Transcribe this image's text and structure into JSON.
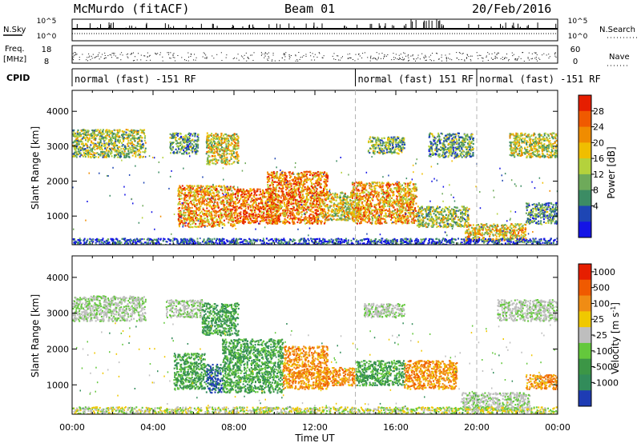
{
  "header": {
    "station": "McMurdo (fitACF)",
    "beam": "Beam 01",
    "date": "20/Feb/2016"
  },
  "chart_data": [
    {
      "type": "line",
      "panel": "noise-and-search",
      "left_label": "N.Sky",
      "right_label": "N.Search",
      "left_ticks": [
        "10^5",
        "10^0"
      ],
      "right_ticks": [
        "10^5",
        "10^0"
      ],
      "series": [
        {
          "name": "N.Sky",
          "style": "solid"
        },
        {
          "name": "N.Search",
          "style": "dotted"
        }
      ]
    },
    {
      "type": "scatter",
      "panel": "frequency-and-nave",
      "left_label_top": "Freq.",
      "left_label_bottom": "[MHz]",
      "right_label": "Nave",
      "left_ticks": [
        18,
        8
      ],
      "right_ticks": [
        60,
        0
      ],
      "ylim_left": [
        8,
        18
      ],
      "ylim_right": [
        0,
        60
      ]
    },
    {
      "type": "table",
      "panel": "cpid",
      "label": "CPID",
      "segments": [
        {
          "start_hour": 0,
          "end_hour": 14,
          "text": "normal (fast) -151 RF"
        },
        {
          "start_hour": 14,
          "end_hour": 20,
          "text": "normal (fast) 151 RF"
        },
        {
          "start_hour": 20,
          "end_hour": 24,
          "text": "normal (fast) -151 RF"
        }
      ]
    },
    {
      "type": "heatmap",
      "panel": "power",
      "ylabel": "Slant Range [km]",
      "yticks": [
        1000,
        2000,
        3000,
        4000
      ],
      "ylim": [
        180,
        4600
      ],
      "xlim_hours": [
        0,
        24
      ],
      "colorbar_label": "Power [dB]",
      "colorbar_ticks": [
        "28",
        "24",
        "20",
        "16",
        "12",
        "8",
        "4"
      ],
      "colors": [
        "#1414e6",
        "#1e46b4",
        "#3c8c64",
        "#6eaa5a",
        "#b4d23c",
        "#f0be00",
        "#f08c00",
        "#f05a00",
        "#e61e00"
      ],
      "regions": [
        {
          "t0": 0.0,
          "t1": 3.6,
          "r0": 2700,
          "r1": 3500,
          "level": 0.45
        },
        {
          "t0": 4.8,
          "t1": 6.2,
          "r0": 2800,
          "r1": 3400,
          "level": 0.35
        },
        {
          "t0": 6.6,
          "t1": 8.2,
          "r0": 2500,
          "r1": 3400,
          "level": 0.55
        },
        {
          "t0": 14.6,
          "t1": 16.4,
          "r0": 2800,
          "r1": 3300,
          "level": 0.4
        },
        {
          "t0": 17.6,
          "t1": 19.8,
          "r0": 2700,
          "r1": 3400,
          "level": 0.35
        },
        {
          "t0": 21.6,
          "t1": 24.0,
          "r0": 2700,
          "r1": 3400,
          "level": 0.5
        },
        {
          "t0": 5.2,
          "t1": 8.0,
          "r0": 700,
          "r1": 1900,
          "level": 0.7
        },
        {
          "t0": 8.0,
          "t1": 10.2,
          "r0": 800,
          "r1": 1800,
          "level": 0.8
        },
        {
          "t0": 9.6,
          "t1": 12.6,
          "r0": 800,
          "r1": 2300,
          "level": 0.75
        },
        {
          "t0": 12.6,
          "t1": 14.2,
          "r0": 900,
          "r1": 1700,
          "level": 0.55
        },
        {
          "t0": 13.8,
          "t1": 17.0,
          "r0": 800,
          "r1": 2000,
          "level": 0.7
        },
        {
          "t0": 17.0,
          "t1": 19.6,
          "r0": 700,
          "r1": 1300,
          "level": 0.45
        },
        {
          "t0": 19.4,
          "t1": 22.4,
          "r0": 300,
          "r1": 800,
          "level": 0.6
        },
        {
          "t0": 22.4,
          "t1": 24.0,
          "r0": 800,
          "r1": 1400,
          "level": 0.3
        },
        {
          "t0": 0.0,
          "t1": 24.0,
          "r0": 180,
          "r1": 380,
          "level": 0.15
        }
      ]
    },
    {
      "type": "heatmap",
      "panel": "velocity",
      "ylabel": "Slant Range [km]",
      "xlabel": "Time UT",
      "yticks": [
        1000,
        2000,
        3000,
        4000
      ],
      "ylim": [
        180,
        4600
      ],
      "xlim_hours": [
        0,
        24
      ],
      "xticks": [
        "00:00",
        "04:00",
        "08:00",
        "12:00",
        "16:00",
        "20:00",
        "00:00"
      ],
      "colorbar_label": "Velocity [m s^-1]",
      "colorbar_ticks": [
        "1000",
        "500",
        "100",
        "25",
        "-25",
        "-100",
        "-500",
        "-1000"
      ],
      "colors": [
        "#1e3cb4",
        "#328c5a",
        "#3c9646",
        "#64c83c",
        "#bebebe",
        "#f0c800",
        "#f08c14",
        "#f05a00",
        "#e61e00"
      ],
      "regions": [
        {
          "t0": 0.0,
          "t1": 3.6,
          "r0": 2800,
          "r1": 3500,
          "kind": "gray"
        },
        {
          "t0": 4.6,
          "t1": 6.4,
          "r0": 2900,
          "r1": 3400,
          "kind": "gray"
        },
        {
          "t0": 6.4,
          "t1": 8.2,
          "r0": 2400,
          "r1": 3300,
          "kind": "green"
        },
        {
          "t0": 14.4,
          "t1": 16.4,
          "r0": 2900,
          "r1": 3300,
          "kind": "gray"
        },
        {
          "t0": 21.0,
          "t1": 24.0,
          "r0": 2800,
          "r1": 3400,
          "kind": "gray"
        },
        {
          "t0": 5.0,
          "t1": 6.6,
          "r0": 900,
          "r1": 1900,
          "kind": "green"
        },
        {
          "t0": 6.6,
          "t1": 7.4,
          "r0": 800,
          "r1": 1600,
          "kind": "blue"
        },
        {
          "t0": 7.4,
          "t1": 10.4,
          "r0": 800,
          "r1": 2300,
          "kind": "green"
        },
        {
          "t0": 10.4,
          "t1": 12.6,
          "r0": 900,
          "r1": 2100,
          "kind": "orange"
        },
        {
          "t0": 12.4,
          "t1": 14.0,
          "r0": 1000,
          "r1": 1500,
          "kind": "orange"
        },
        {
          "t0": 14.0,
          "t1": 16.4,
          "r0": 1000,
          "r1": 1700,
          "kind": "green"
        },
        {
          "t0": 16.4,
          "t1": 19.0,
          "r0": 900,
          "r1": 1700,
          "kind": "orange"
        },
        {
          "t0": 19.2,
          "t1": 22.6,
          "r0": 300,
          "r1": 800,
          "kind": "gray"
        },
        {
          "t0": 22.4,
          "t1": 24.0,
          "r0": 900,
          "r1": 1300,
          "kind": "orange"
        },
        {
          "t0": 0.0,
          "t1": 24.0,
          "r0": 180,
          "r1": 400,
          "kind": "yellow"
        }
      ]
    }
  ]
}
